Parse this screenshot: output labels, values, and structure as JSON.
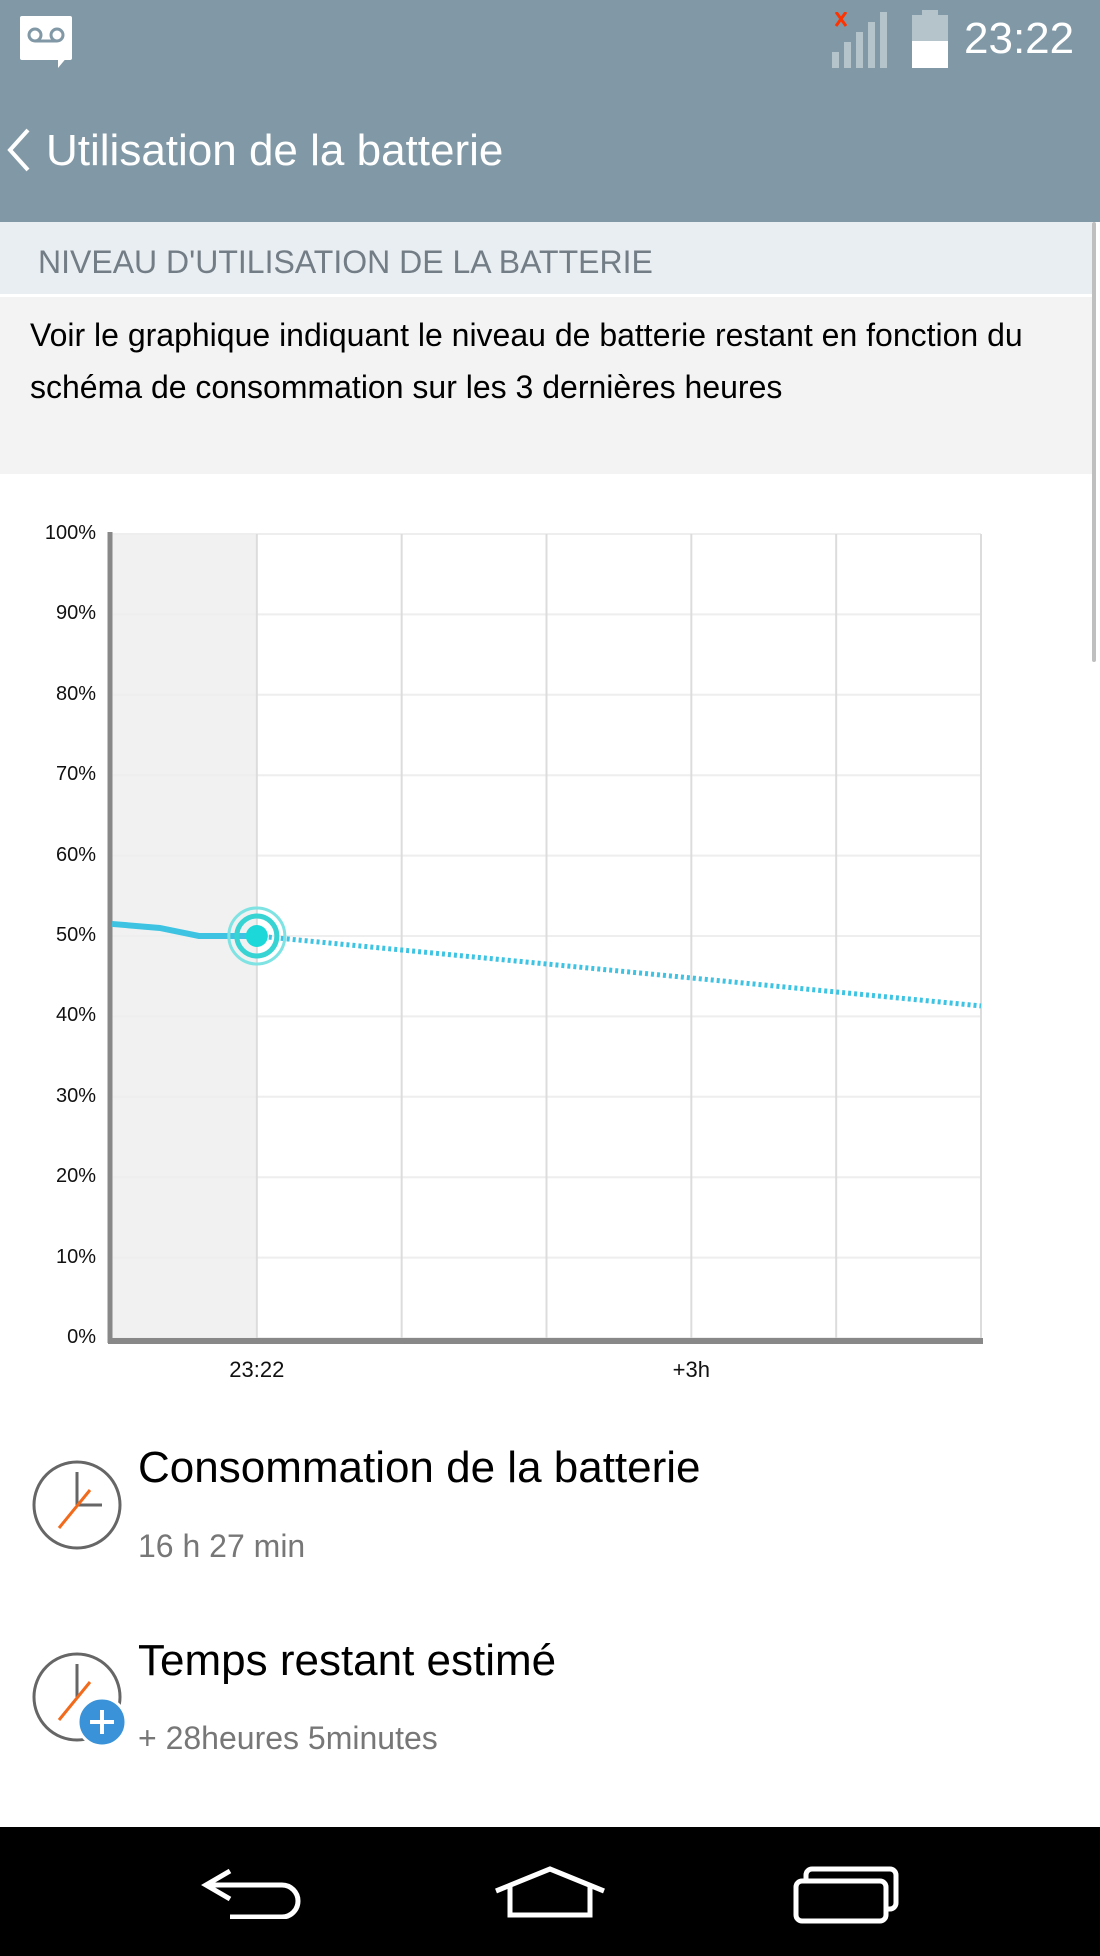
{
  "status_bar": {
    "time": "23:22",
    "icons": [
      "voicemail-icon",
      "signal-no-service-icon",
      "battery-half-icon"
    ]
  },
  "header": {
    "title": "Utilisation de la batterie",
    "back_icon": "chevron-left-icon"
  },
  "section": {
    "title": "NIVEAU D'UTILISATION DE LA BATTERIE",
    "description": "Voir le graphique indiquant le niveau de batterie restant en fonction du schéma de consommation sur les 3 dernières heures"
  },
  "colors": {
    "header_bg": "#8199a6",
    "line": "#3ec4e2",
    "marker": "#1dd8d8"
  },
  "chart_data": {
    "type": "line",
    "y_ticks": [
      "0%",
      "10%",
      "20%",
      "30%",
      "40%",
      "50%",
      "60%",
      "70%",
      "80%",
      "90%",
      "100%"
    ],
    "x_tick_labels": [
      "23:22",
      "+3h"
    ],
    "x_unit": "hours relative to 23:22",
    "xlim": [
      -1,
      5
    ],
    "ylim": [
      0,
      100
    ],
    "grid": true,
    "series": [
      {
        "style": "solid",
        "x": [
          -1,
          -0.67,
          -0.4,
          0
        ],
        "y": [
          51.5,
          51,
          50,
          50
        ]
      },
      {
        "style": "dotted",
        "x": [
          0,
          5
        ],
        "y": [
          50,
          41.3
        ]
      }
    ],
    "current_marker": {
      "x": 0,
      "y": 50
    }
  },
  "items": [
    {
      "title": "Consommation de la batterie",
      "subtitle": "16 h 27 min",
      "icon": "clock-icon"
    },
    {
      "title": "Temps restant estimé",
      "subtitle": "+ 28heures 5minutes",
      "icon": "clock-plus-icon"
    }
  ],
  "nav": [
    "back-nav-icon",
    "home-icon",
    "recents-icon"
  ]
}
